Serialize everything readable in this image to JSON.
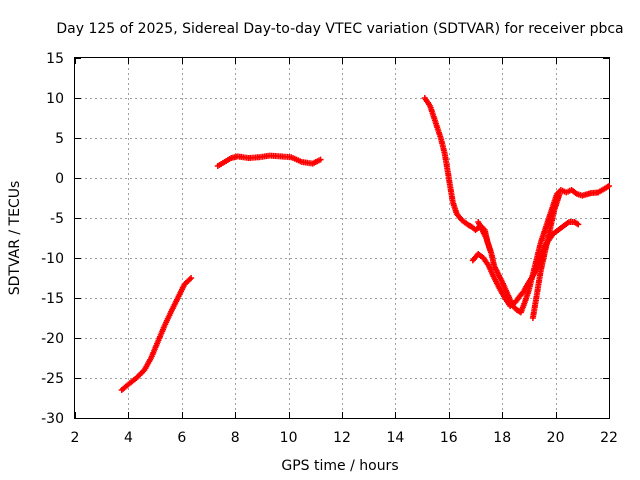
{
  "chart_data": {
    "type": "scatter",
    "title": "Day 125 of 2025, Sidereal Day-to-day VTEC variation (SDTVAR) for receiver pbca",
    "xlabel": "GPS time / hours",
    "ylabel": "SDTVAR / TECUs",
    "xlim": [
      2,
      22
    ],
    "ylim": [
      -30,
      15
    ],
    "xticks": [
      "2",
      "4",
      "6",
      "8",
      "10",
      "12",
      "14",
      "16",
      "18",
      "20",
      "22"
    ],
    "yticks": [
      "15",
      "10",
      "5",
      "0",
      "-5",
      "-10",
      "-15",
      "-20",
      "-25",
      "-30"
    ],
    "grid": true,
    "marker": "plus",
    "series": [
      {
        "name": "SDTVAR",
        "color": "#ff0000",
        "segments": [
          [
            [
              3.75,
              -26.5
            ],
            [
              4.0,
              -25.8
            ],
            [
              4.3,
              -25.0
            ],
            [
              4.6,
              -24.0
            ],
            [
              4.85,
              -22.5
            ],
            [
              5.1,
              -20.5
            ],
            [
              5.35,
              -18.5
            ],
            [
              5.6,
              -16.7
            ],
            [
              5.85,
              -15.0
            ],
            [
              6.1,
              -13.3
            ],
            [
              6.35,
              -12.5
            ]
          ],
          [
            [
              7.35,
              1.5
            ],
            [
              7.6,
              2.0
            ],
            [
              7.85,
              2.5
            ],
            [
              8.1,
              2.7
            ],
            [
              8.5,
              2.5
            ],
            [
              8.9,
              2.6
            ],
            [
              9.3,
              2.8
            ],
            [
              9.7,
              2.7
            ],
            [
              10.1,
              2.6
            ],
            [
              10.5,
              2.0
            ],
            [
              10.9,
              1.8
            ],
            [
              11.2,
              2.3
            ]
          ],
          [
            [
              15.1,
              10.0
            ],
            [
              15.3,
              9.0
            ],
            [
              15.5,
              7.0
            ],
            [
              15.7,
              5.0
            ],
            [
              15.85,
              3.0
            ],
            [
              15.95,
              1.0
            ],
            [
              16.05,
              -1.0
            ],
            [
              16.15,
              -3.0
            ],
            [
              16.3,
              -4.5
            ],
            [
              16.5,
              -5.3
            ],
            [
              16.7,
              -5.8
            ],
            [
              16.9,
              -6.2
            ],
            [
              17.0,
              -6.5
            ],
            [
              17.2,
              -6.0
            ],
            [
              17.35,
              -6.5
            ],
            [
              17.45,
              -8.0
            ],
            [
              17.6,
              -9.5
            ],
            [
              17.7,
              -11.0
            ],
            [
              17.85,
              -12.0
            ],
            [
              18.0,
              -13.0
            ],
            [
              18.2,
              -14.5
            ],
            [
              18.4,
              -16.0
            ],
            [
              18.55,
              -16.5
            ],
            [
              18.7,
              -16.8
            ],
            [
              18.85,
              -15.5
            ],
            [
              19.0,
              -14.0
            ],
            [
              19.15,
              -12.0
            ],
            [
              19.3,
              -10.0
            ],
            [
              19.45,
              -8.0
            ],
            [
              19.6,
              -6.5
            ],
            [
              19.75,
              -5.0
            ],
            [
              19.9,
              -3.5
            ],
            [
              20.05,
              -2.0
            ],
            [
              20.2,
              -1.5
            ],
            [
              20.4,
              -1.8
            ],
            [
              20.6,
              -1.5
            ],
            [
              20.8,
              -2.0
            ],
            [
              21.0,
              -2.2
            ],
            [
              21.3,
              -1.9
            ],
            [
              21.6,
              -1.8
            ],
            [
              21.9,
              -1.2
            ],
            [
              22.0,
              -1.0
            ]
          ],
          [
            [
              16.9,
              -10.3
            ],
            [
              17.1,
              -9.5
            ],
            [
              17.3,
              -10.0
            ],
            [
              17.5,
              -11.0
            ],
            [
              17.7,
              -12.5
            ],
            [
              17.9,
              -13.8
            ],
            [
              18.1,
              -15.0
            ],
            [
              18.3,
              -16.0
            ],
            [
              18.5,
              -15.5
            ],
            [
              18.65,
              -14.8
            ],
            [
              18.8,
              -14.2
            ],
            [
              19.0,
              -13.0
            ],
            [
              19.2,
              -12.0
            ],
            [
              19.4,
              -10.5
            ],
            [
              19.55,
              -9.0
            ],
            [
              19.7,
              -8.0
            ],
            [
              19.9,
              -7.0
            ],
            [
              20.1,
              -6.5
            ],
            [
              20.3,
              -6.0
            ],
            [
              20.5,
              -5.5
            ],
            [
              20.7,
              -5.5
            ],
            [
              20.85,
              -5.8
            ]
          ],
          [
            [
              17.1,
              -5.5
            ],
            [
              17.25,
              -6.5
            ],
            [
              17.4,
              -7.5
            ],
            [
              17.55,
              -9.0
            ]
          ],
          [
            [
              19.15,
              -17.5
            ],
            [
              19.25,
              -15.5
            ],
            [
              19.35,
              -13.5
            ],
            [
              19.45,
              -11.5
            ],
            [
              19.55,
              -10.0
            ],
            [
              19.65,
              -8.5
            ],
            [
              19.75,
              -7.0
            ],
            [
              19.85,
              -5.5
            ],
            [
              19.95,
              -4.0
            ],
            [
              20.05,
              -3.0
            ],
            [
              20.15,
              -2.0
            ]
          ]
        ]
      }
    ]
  }
}
